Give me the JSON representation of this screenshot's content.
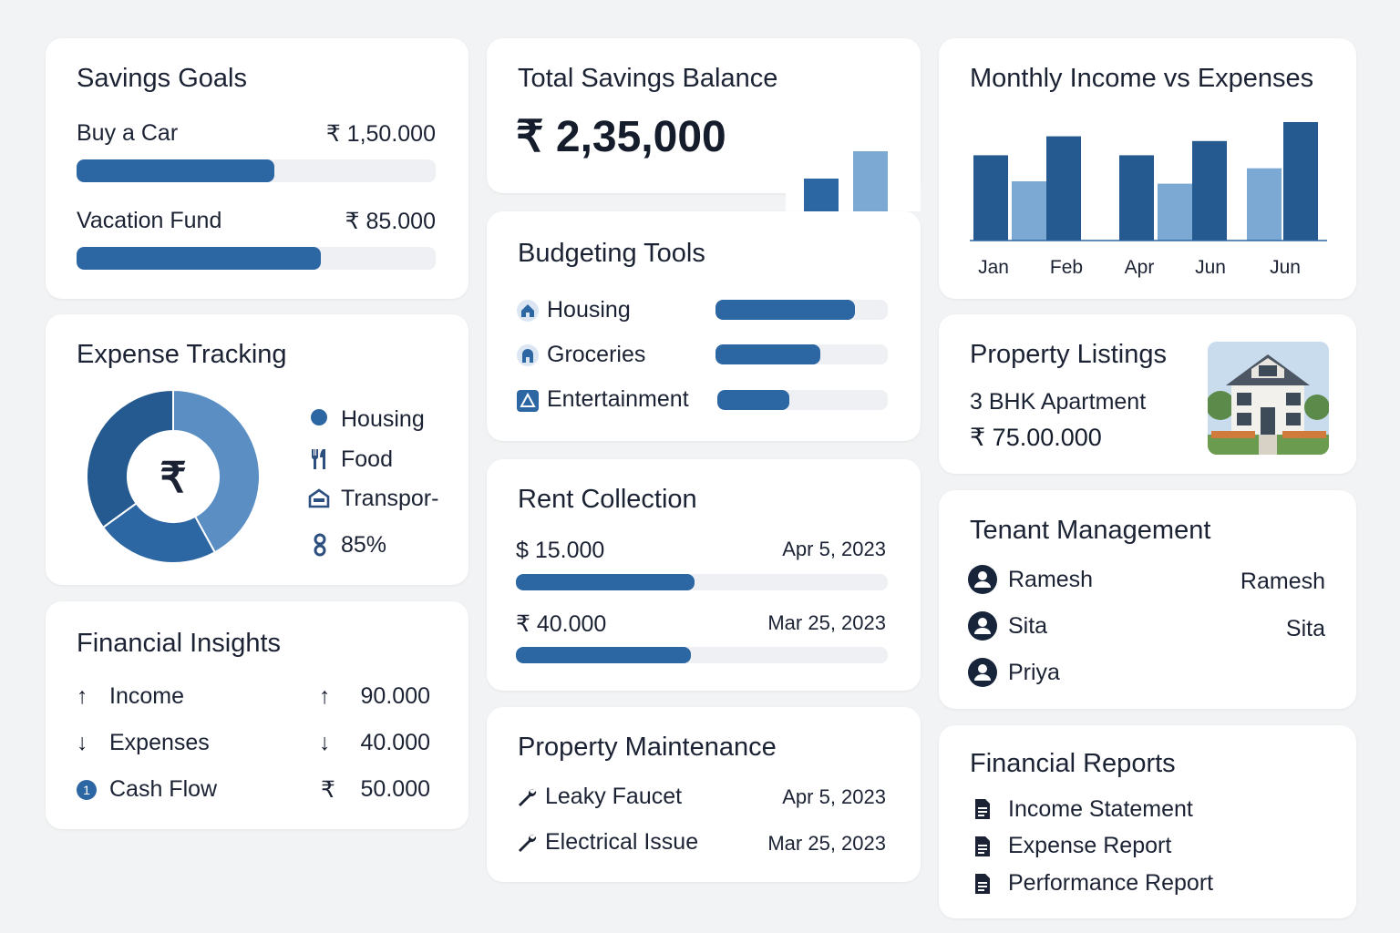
{
  "colors": {
    "primary": "#2c66a3",
    "light": "#7ba9d4",
    "dark": "#245a8f",
    "track": "#eef0f3",
    "text": "#1b2233"
  },
  "savings_goals": {
    "title": "Savings Goals",
    "items": [
      {
        "label": "Buy a Car",
        "amount": "₹ 1,50.000",
        "progress": 0.55
      },
      {
        "label": "Vacation Fund",
        "amount": "₹ 85.000",
        "progress": 0.68
      }
    ]
  },
  "total_savings": {
    "title": "Total Savings Balance",
    "amount": "₹ 2,35,000",
    "mini_bars": [
      0.55,
      1.0
    ]
  },
  "income_expenses": {
    "title": "Monthly Income vs Expenses",
    "chart_data": {
      "type": "bar",
      "categories": [
        "Jan",
        "Feb",
        "Apr",
        "Jun",
        "Jun"
      ],
      "series": [
        {
          "values": [
            null,
            null,
            null,
            null,
            null
          ]
        }
      ],
      "bars": [
        {
          "group": "Jan",
          "value": 72,
          "tone": "dark"
        },
        {
          "group": "Jan",
          "value": 50,
          "tone": "light"
        },
        {
          "group": "Feb",
          "value": 88,
          "tone": "dark"
        },
        {
          "group": "Apr",
          "value": 72,
          "tone": "dark"
        },
        {
          "group": "Apr",
          "value": 48,
          "tone": "light"
        },
        {
          "group": "Jun",
          "value": 84,
          "tone": "dark"
        },
        {
          "group": "Jun",
          "value": 61,
          "tone": "light"
        },
        {
          "group": "Jun",
          "value": 100,
          "tone": "dark"
        }
      ],
      "ylim": [
        0,
        100
      ],
      "grid": false,
      "xlabel": "",
      "ylabel": "",
      "title": "Monthly Income vs Expenses"
    }
  },
  "expense_tracking": {
    "title": "Expense Tracking",
    "center_icon": "₹",
    "chart_data": {
      "type": "pie",
      "slices": [
        {
          "label": "Housing",
          "value": 42,
          "color": "#5b8fc4"
        },
        {
          "label": "Food",
          "value": 23,
          "color": "#2c66a3"
        },
        {
          "label": "Transport",
          "value": 35,
          "color": "#245a8f"
        }
      ]
    },
    "legend": [
      {
        "icon": "dot-icon",
        "label": "Housing"
      },
      {
        "icon": "fork-knife-icon",
        "label": "Food"
      },
      {
        "icon": "bus-icon",
        "label": "Transpor-"
      },
      {
        "icon": "percent-icon",
        "label": "85%"
      }
    ]
  },
  "budgeting_tools": {
    "title": "Budgeting Tools",
    "items": [
      {
        "icon": "home-icon",
        "label": "Housing",
        "progress": 0.81
      },
      {
        "icon": "store-icon",
        "label": "Groceries",
        "progress": 0.61
      },
      {
        "icon": "triangle-icon",
        "label": "Entertainment",
        "progress": 0.42
      }
    ]
  },
  "rent_collection": {
    "title": "Rent Collection",
    "items": [
      {
        "amount": "$ 15.000",
        "date": "Apr  5, 2023",
        "progress": 0.48
      },
      {
        "amount": "₹ 40.000",
        "date": "Mar 25, 2023",
        "progress": 0.47
      }
    ]
  },
  "property_maintenance": {
    "title": "Property Maintenance",
    "items": [
      {
        "icon": "wrench-icon",
        "label": "Leaky Faucet",
        "date": "Apr 5, 2023"
      },
      {
        "icon": "wrench-icon",
        "label": "Electrical Issue",
        "date": "Mar 25, 2023"
      }
    ]
  },
  "financial_insights": {
    "title": "Financial Insights",
    "items": [
      {
        "icon": "arrow-up-icon",
        "label": "Income",
        "value_icon": "↑",
        "value": "90.000"
      },
      {
        "icon": "arrow-down-icon",
        "label": "Expenses",
        "value_icon": "↓",
        "value": "40.000"
      },
      {
        "icon": "info-circle-icon",
        "label": "Cash Flow",
        "value_icon": "₹",
        "value": "50.000"
      }
    ]
  },
  "property_listings": {
    "title": "Property Listings",
    "listing_type": "3 BHK Apartment",
    "price": "₹ 75.00.000",
    "image_icon": "house-photo"
  },
  "tenant_management": {
    "title": "Tenant Management",
    "tenants": [
      {
        "name": "Ramesh",
        "right": "Ramesh"
      },
      {
        "name": "Sita",
        "right": "Sita"
      },
      {
        "name": "Priya",
        "right": ""
      }
    ]
  },
  "financial_reports": {
    "title": "Financial Reports",
    "reports": [
      {
        "icon": "document-icon",
        "label": "Income Statement"
      },
      {
        "icon": "document-icon",
        "label": "Expense Report"
      },
      {
        "icon": "document-icon",
        "label": "Performance Report"
      }
    ]
  }
}
